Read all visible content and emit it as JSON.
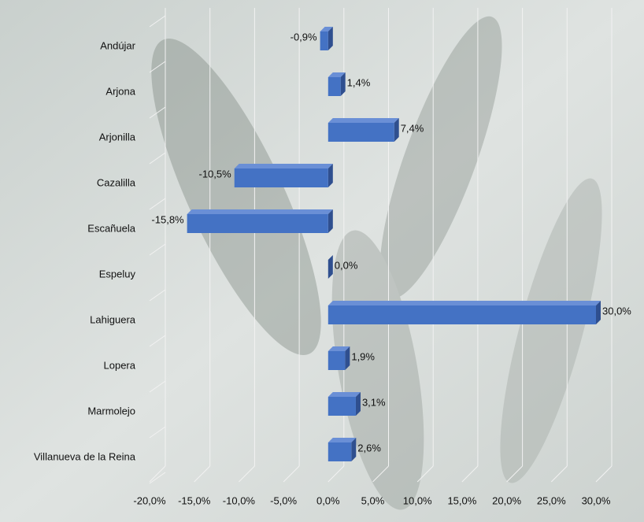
{
  "chart_data": {
    "type": "bar3d",
    "orientation": "horizontal",
    "categories": [
      "Andújar",
      "Arjona",
      "Arjonilla",
      "Cazalilla",
      "Escañuela",
      "Espeluy",
      "Lahiguera",
      "Lopera",
      "Marmolejo",
      "Villanueva de la Reina"
    ],
    "values": [
      -0.9,
      1.4,
      7.4,
      -10.5,
      -15.8,
      0.0,
      30.0,
      1.9,
      3.1,
      2.6
    ],
    "value_labels": [
      "-0,9%",
      "1,4%",
      "7,4%",
      "-10,5%",
      "-15,8%",
      "0,0%",
      "30,0%",
      "1,9%",
      "3,1%",
      "2,6%"
    ],
    "color": "#4472c4",
    "xlim": [
      -20,
      30
    ],
    "xticks": [
      {
        "value": -20,
        "label": "-20,0%"
      },
      {
        "value": -15,
        "label": "-15,0%"
      },
      {
        "value": -10,
        "label": "-10,0%"
      },
      {
        "value": -5,
        "label": "-5,0%"
      },
      {
        "value": 0,
        "label": "0,0%"
      },
      {
        "value": 5,
        "label": "5,0%"
      },
      {
        "value": 10,
        "label": "10,0%"
      },
      {
        "value": 15,
        "label": "15,0%"
      },
      {
        "value": 20,
        "label": "20,0%"
      },
      {
        "value": 25,
        "label": "25,0%"
      },
      {
        "value": 30,
        "label": "30,0%"
      }
    ],
    "grid": true
  }
}
